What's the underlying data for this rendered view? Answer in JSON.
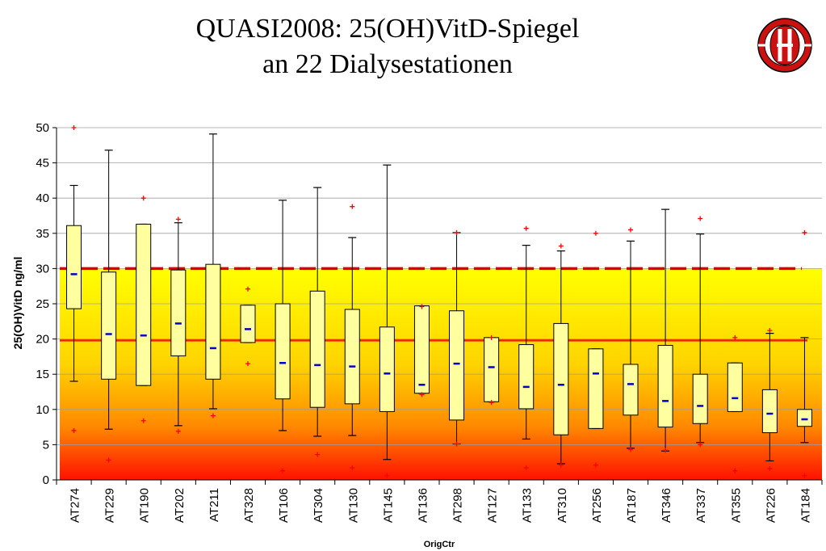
{
  "header": {
    "title_line1": "QUASI2008: 25(OH)VitD-Spiegel",
    "title_line2": "an 22 Dialysestationen"
  },
  "logo": {
    "icon": "seal-logo-icon",
    "colors": [
      "#cc1111",
      "#ffffff"
    ]
  },
  "colors": {
    "box_fill": "#ffffa0",
    "median": "#0000cc",
    "outlier": "#ff0000",
    "threshold_dashed": "#dd0000",
    "threshold_solid": "#ee2200",
    "gradient_top": "#ffff00",
    "gradient_bottom": "#ff1100"
  },
  "chart_data": {
    "type": "box",
    "xlabel": "OrigCtr",
    "ylabel": "25(OH)VitD ng/ml",
    "ylim": [
      0,
      50
    ],
    "yticks": [
      0,
      5,
      10,
      15,
      20,
      25,
      30,
      35,
      40,
      45,
      50
    ],
    "grid": true,
    "background": "yellow-to-red gradient from 30 down to 0",
    "reference_lines": [
      {
        "value": 30,
        "style": "dashed"
      },
      {
        "value": 19.8,
        "style": "solid"
      }
    ],
    "categories": [
      "AT274",
      "AT229",
      "AT190",
      "AT202",
      "AT211",
      "AT328",
      "AT106",
      "AT304",
      "AT130",
      "AT145",
      "AT136",
      "AT298",
      "AT127",
      "AT133",
      "AT310",
      "AT256",
      "AT187",
      "AT346",
      "AT337",
      "AT355",
      "AT226",
      "AT184"
    ],
    "boxes": [
      {
        "min": 14.0,
        "q1": 24.3,
        "median": 29.2,
        "q3": 36.1,
        "max": 41.8,
        "outliers": [
          7.0,
          50.0
        ]
      },
      {
        "min": 7.2,
        "q1": 14.3,
        "median": 20.7,
        "q3": 29.5,
        "max": 46.8,
        "outliers": [
          2.8
        ]
      },
      {
        "min": 13.4,
        "q1": 13.4,
        "median": 20.5,
        "q3": 36.3,
        "max": 36.3,
        "outliers": [
          8.4,
          40.0
        ]
      },
      {
        "min": 7.7,
        "q1": 17.6,
        "median": 22.2,
        "q3": 29.8,
        "max": 36.5,
        "outliers": [
          6.9,
          37.0
        ]
      },
      {
        "min": 10.1,
        "q1": 14.3,
        "median": 18.7,
        "q3": 30.6,
        "max": 49.1,
        "outliers": [
          9.1
        ]
      },
      {
        "min": 19.5,
        "q1": 19.5,
        "median": 21.4,
        "q3": 24.8,
        "max": 24.8,
        "outliers": [
          16.5,
          27.1
        ]
      },
      {
        "min": 7.0,
        "q1": 11.5,
        "median": 16.6,
        "q3": 25.0,
        "max": 39.7,
        "outliers": [
          1.3
        ]
      },
      {
        "min": 6.2,
        "q1": 10.3,
        "median": 16.3,
        "q3": 26.8,
        "max": 41.5,
        "outliers": [
          3.6
        ]
      },
      {
        "min": 6.3,
        "q1": 10.8,
        "median": 16.1,
        "q3": 24.2,
        "max": 34.4,
        "outliers": [
          1.7,
          38.8
        ]
      },
      {
        "min": 2.9,
        "q1": 9.7,
        "median": 15.1,
        "q3": 21.7,
        "max": 44.7,
        "outliers": [
          0.6
        ]
      },
      {
        "min": 12.3,
        "q1": 12.3,
        "median": 13.5,
        "q3": 24.7,
        "max": 24.7,
        "outliers": [
          12.1,
          24.6
        ]
      },
      {
        "min": 5.1,
        "q1": 8.5,
        "median": 16.5,
        "q3": 24.0,
        "max": 35.1,
        "outliers": [
          5.1,
          35.1
        ]
      },
      {
        "min": 11.1,
        "q1": 11.1,
        "median": 16.0,
        "q3": 20.2,
        "max": 20.2,
        "outliers": [
          11.0,
          20.2
        ]
      },
      {
        "min": 5.8,
        "q1": 10.1,
        "median": 13.2,
        "q3": 19.2,
        "max": 33.3,
        "outliers": [
          1.7,
          35.7
        ]
      },
      {
        "min": 2.3,
        "q1": 6.4,
        "median": 13.5,
        "q3": 22.2,
        "max": 32.5,
        "outliers": [
          2.1,
          33.2
        ]
      },
      {
        "min": 7.3,
        "q1": 7.3,
        "median": 15.1,
        "q3": 18.6,
        "max": 18.6,
        "outliers": [
          2.1,
          35.0
        ]
      },
      {
        "min": 4.5,
        "q1": 9.2,
        "median": 13.6,
        "q3": 16.4,
        "max": 33.9,
        "outliers": [
          4.3,
          35.5
        ]
      },
      {
        "min": 4.1,
        "q1": 7.5,
        "median": 11.2,
        "q3": 19.1,
        "max": 38.4,
        "outliers": [
          4.2
        ]
      },
      {
        "min": 5.3,
        "q1": 8.0,
        "median": 10.5,
        "q3": 15.0,
        "max": 34.9,
        "outliers": [
          5.0,
          37.1
        ]
      },
      {
        "min": 9.7,
        "q1": 9.7,
        "median": 11.6,
        "q3": 16.6,
        "max": 16.6,
        "outliers": [
          1.3,
          20.2
        ]
      },
      {
        "min": 2.7,
        "q1": 6.7,
        "median": 9.4,
        "q3": 12.8,
        "max": 20.8,
        "outliers": [
          1.6,
          21.2
        ]
      },
      {
        "min": 5.3,
        "q1": 7.6,
        "median": 8.6,
        "q3": 10.0,
        "max": 20.2,
        "outliers": [
          0.6,
          35.1
        ]
      }
    ]
  }
}
